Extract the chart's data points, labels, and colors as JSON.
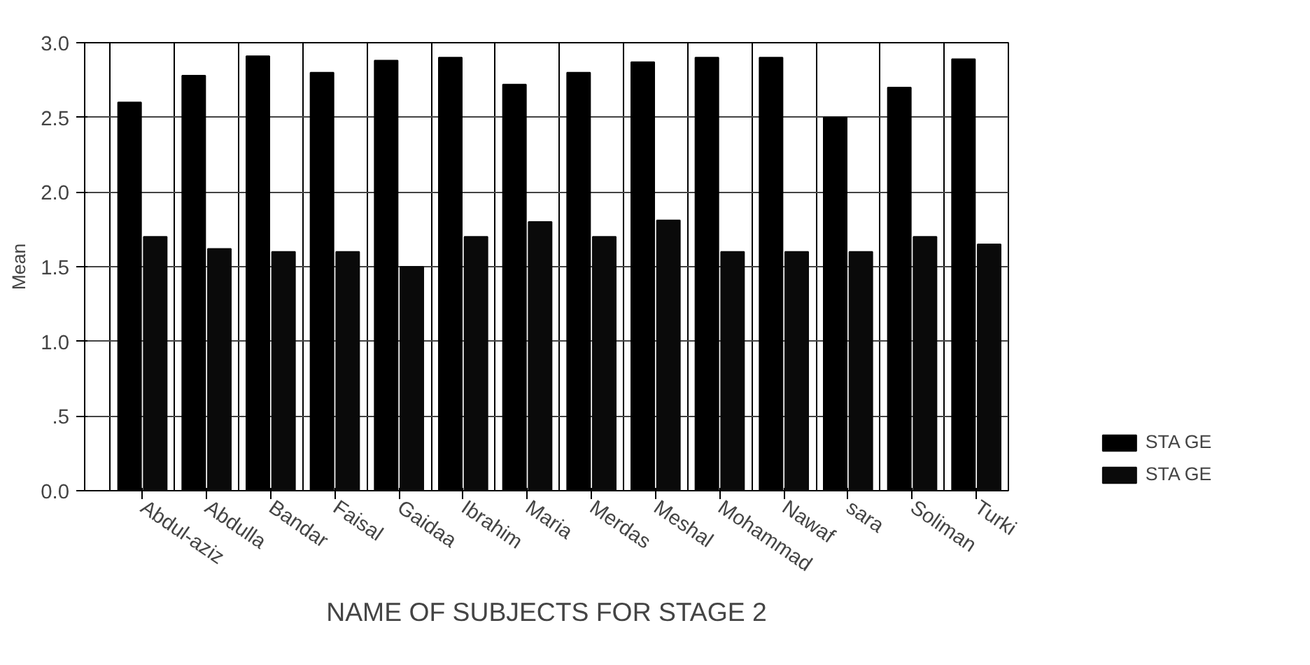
{
  "chart_data": {
    "type": "bar",
    "xlabel": "NAME OF SUBJECTS FOR STAGE 2",
    "ylabel": "Mean",
    "categories": [
      "Abdul-aziz",
      "Abdulla",
      "Bandar",
      "Faisal",
      "Gaidaa",
      "Ibrahim",
      "Maria",
      "Merdas",
      "Meshal",
      "Mohammad",
      "Nawaf",
      "sara",
      "Soliman",
      "Turki"
    ],
    "series": [
      {
        "name": "STA GE",
        "color": "#000000",
        "values": [
          2.6,
          2.78,
          2.91,
          2.8,
          2.88,
          2.9,
          2.72,
          2.8,
          2.87,
          2.9,
          2.9,
          2.5,
          2.7,
          2.89
        ]
      },
      {
        "name": "STA GE",
        "color": "#0a0a0a",
        "values": [
          1.7,
          1.62,
          1.6,
          1.6,
          1.5,
          1.7,
          1.8,
          1.7,
          1.81,
          1.6,
          1.6,
          1.6,
          1.7,
          1.65
        ]
      }
    ],
    "ylim": [
      0,
      3
    ],
    "yticks": [
      {
        "value": 0,
        "label": "0.0"
      },
      {
        "value": 0.5,
        "label": ".5"
      },
      {
        "value": 1,
        "label": "1.0"
      },
      {
        "value": 1.5,
        "label": "1.5"
      },
      {
        "value": 2,
        "label": "2.0"
      },
      {
        "value": 2.5,
        "label": "2.5"
      },
      {
        "value": 3,
        "label": "3.0"
      }
    ],
    "grid": true,
    "legend": "right"
  }
}
